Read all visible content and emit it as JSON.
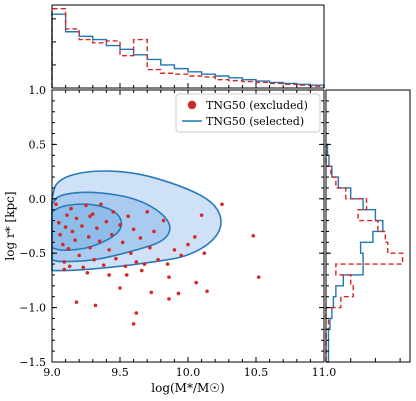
{
  "chart_data": {
    "type": "scatter",
    "main": {
      "xlabel": "log(M*/M☉)",
      "ylabel": "log r* [kpc]",
      "xlim": [
        9.0,
        11.0
      ],
      "ylim": [
        -1.5,
        1.0
      ],
      "xticks": [
        "9.0",
        "9.5",
        "10.0",
        "10.5",
        "11.0"
      ],
      "yticks": [
        "−1.5",
        "−1.0",
        "−0.5",
        "0.0",
        "0.5",
        "1.0"
      ],
      "legend_position": "top-right",
      "legend": [
        {
          "label": "TNG50 (excluded)",
          "marker": "dot",
          "color": "#d62728"
        },
        {
          "label": "TNG50 (selected)",
          "marker": "line",
          "color": "#1f77b4"
        }
      ]
    },
    "excluded_points": [
      [
        9.03,
        -0.05
      ],
      [
        9.05,
        -0.22
      ],
      [
        9.06,
        -0.33
      ],
      [
        9.08,
        -0.42
      ],
      [
        9.09,
        -0.58
      ],
      [
        9.1,
        -0.26
      ],
      [
        9.11,
        -0.15
      ],
      [
        9.12,
        -0.46
      ],
      [
        9.13,
        -0.62
      ],
      [
        9.14,
        -0.09
      ],
      [
        9.15,
        -0.3
      ],
      [
        9.17,
        -0.38
      ],
      [
        9.18,
        -0.18
      ],
      [
        9.2,
        -0.52
      ],
      [
        9.22,
        -0.25
      ],
      [
        9.23,
        -0.63
      ],
      [
        9.25,
        -0.06
      ],
      [
        9.27,
        -0.35
      ],
      [
        9.28,
        -0.45
      ],
      [
        9.3,
        -0.14
      ],
      [
        9.31,
        -0.56
      ],
      [
        9.33,
        -0.27
      ],
      [
        9.35,
        -0.39
      ],
      [
        9.36,
        -0.05
      ],
      [
        9.38,
        -0.61
      ],
      [
        9.4,
        -0.21
      ],
      [
        9.42,
        -0.47
      ],
      [
        9.44,
        -0.33
      ],
      [
        9.45,
        -0.12
      ],
      [
        9.47,
        -0.55
      ],
      [
        9.5,
        -0.24
      ],
      [
        9.52,
        -0.4
      ],
      [
        9.54,
        -0.62
      ],
      [
        9.56,
        -0.16
      ],
      [
        9.58,
        -0.5
      ],
      [
        9.6,
        -0.28
      ],
      [
        9.62,
        -0.58
      ],
      [
        9.65,
        -0.36
      ],
      [
        9.68,
        -0.6
      ],
      [
        9.7,
        -0.12
      ],
      [
        9.72,
        -0.45
      ],
      [
        9.75,
        -0.3
      ],
      [
        9.78,
        -0.56
      ],
      [
        9.82,
        -0.2
      ],
      [
        9.85,
        -0.6
      ],
      [
        9.9,
        -0.47
      ],
      [
        9.95,
        -0.52
      ],
      [
        10.0,
        -0.42
      ],
      [
        10.05,
        -0.35
      ],
      [
        10.1,
        -0.15
      ],
      [
        10.12,
        -0.5
      ],
      [
        10.25,
        -0.05
      ],
      [
        10.48,
        -0.34
      ],
      [
        10.52,
        -0.72
      ],
      [
        9.18,
        -0.95
      ],
      [
        9.32,
        -0.98
      ],
      [
        9.62,
        -1.05
      ],
      [
        9.73,
        -0.86
      ],
      [
        9.86,
        -0.92
      ],
      [
        9.93,
        -0.87
      ],
      [
        10.06,
        -0.77
      ],
      [
        9.6,
        -1.15
      ],
      [
        10.14,
        -0.85
      ],
      [
        9.5,
        -0.82
      ],
      [
        9.42,
        -0.7
      ],
      [
        9.86,
        -0.72
      ],
      [
        9.55,
        -0.7
      ],
      [
        9.09,
        -0.65
      ],
      [
        9.26,
        -0.68
      ],
      [
        9.66,
        -0.66
      ],
      [
        9.28,
        -0.16
      ]
    ],
    "contours": [
      {
        "level": "outer",
        "points": [
          [
            9.0,
            0.0
          ],
          [
            9.03,
            0.17
          ],
          [
            9.25,
            0.26
          ],
          [
            9.6,
            0.25
          ],
          [
            9.95,
            0.12
          ],
          [
            10.18,
            -0.02
          ],
          [
            10.26,
            -0.2
          ],
          [
            10.2,
            -0.38
          ],
          [
            10.0,
            -0.53
          ],
          [
            9.75,
            -0.58
          ],
          [
            9.45,
            -0.63
          ],
          [
            9.15,
            -0.66
          ],
          [
            9.0,
            -0.66
          ]
        ]
      },
      {
        "level": "middle",
        "points": [
          [
            9.0,
            -0.05
          ],
          [
            9.05,
            0.04
          ],
          [
            9.3,
            0.07
          ],
          [
            9.65,
            0.0
          ],
          [
            9.88,
            -0.2
          ],
          [
            9.85,
            -0.38
          ],
          [
            9.6,
            -0.48
          ],
          [
            9.3,
            -0.57
          ],
          [
            9.05,
            -0.58
          ],
          [
            9.0,
            -0.56
          ]
        ]
      },
      {
        "level": "inner",
        "points": [
          [
            9.0,
            -0.12
          ],
          [
            9.08,
            -0.06
          ],
          [
            9.3,
            -0.04
          ],
          [
            9.5,
            -0.13
          ],
          [
            9.52,
            -0.3
          ],
          [
            9.3,
            -0.45
          ],
          [
            9.08,
            -0.48
          ],
          [
            9.0,
            -0.45
          ]
        ]
      }
    ],
    "top_histogram": {
      "bins": [
        9.0,
        9.1,
        9.2,
        9.3,
        9.4,
        9.5,
        9.6,
        9.7,
        9.8,
        9.9,
        10.0,
        10.1,
        10.2,
        10.3,
        10.4,
        10.5,
        10.6,
        10.7,
        10.8,
        10.9,
        11.0
      ],
      "excluded_density": [
        1.72,
        1.28,
        1.05,
        0.98,
        1.02,
        0.7,
        1.05,
        0.4,
        0.32,
        0.3,
        0.26,
        0.24,
        0.18,
        0.16,
        0.14,
        0.12,
        0.1,
        0.08,
        0.06,
        0.04
      ],
      "selected_density": [
        1.6,
        1.22,
        1.12,
        1.05,
        0.92,
        0.84,
        0.72,
        0.62,
        0.5,
        0.42,
        0.35,
        0.3,
        0.26,
        0.22,
        0.18,
        0.15,
        0.12,
        0.1,
        0.08,
        0.06
      ]
    },
    "right_histogram": {
      "bins": [
        -1.5,
        -1.4,
        -1.3,
        -1.2,
        -1.1,
        -1.0,
        -0.9,
        -0.8,
        -0.7,
        -0.6,
        -0.5,
        -0.4,
        -0.3,
        -0.2,
        -0.1,
        0.0,
        0.1,
        0.2,
        0.3,
        0.4,
        0.5
      ],
      "excluded_density": [
        0.0,
        0.0,
        0.0,
        0.05,
        0.0,
        0.3,
        0.55,
        0.5,
        0.2,
        1.55,
        1.25,
        1.2,
        1.05,
        0.65,
        0.82,
        0.4,
        0.2,
        0.1,
        0.0,
        0.0
      ],
      "selected_density": [
        0.05,
        0.05,
        0.05,
        0.08,
        0.12,
        0.15,
        0.2,
        0.35,
        0.75,
        0.75,
        0.7,
        0.95,
        1.15,
        1.0,
        0.75,
        0.5,
        0.25,
        0.12,
        0.06,
        0.03
      ]
    }
  }
}
